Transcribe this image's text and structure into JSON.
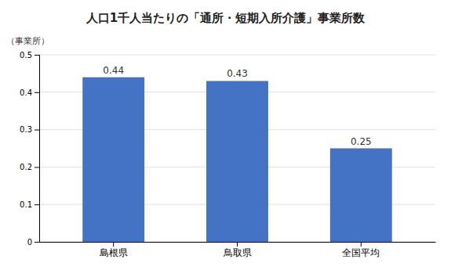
{
  "chart_data": {
    "type": "bar",
    "title": "人口1千人当たりの「通所・短期入所介護」事業所数",
    "ylabel": "（事業所）",
    "categories": [
      "島根県",
      "鳥取県",
      "全国平均"
    ],
    "values": [
      0.44,
      0.43,
      0.25
    ],
    "color": "#4472C4",
    "ylim": [
      0,
      0.5
    ],
    "yticks": [
      0,
      0.1,
      0.2,
      0.3,
      0.4,
      0.5
    ],
    "grid": true,
    "data_labels": true
  }
}
